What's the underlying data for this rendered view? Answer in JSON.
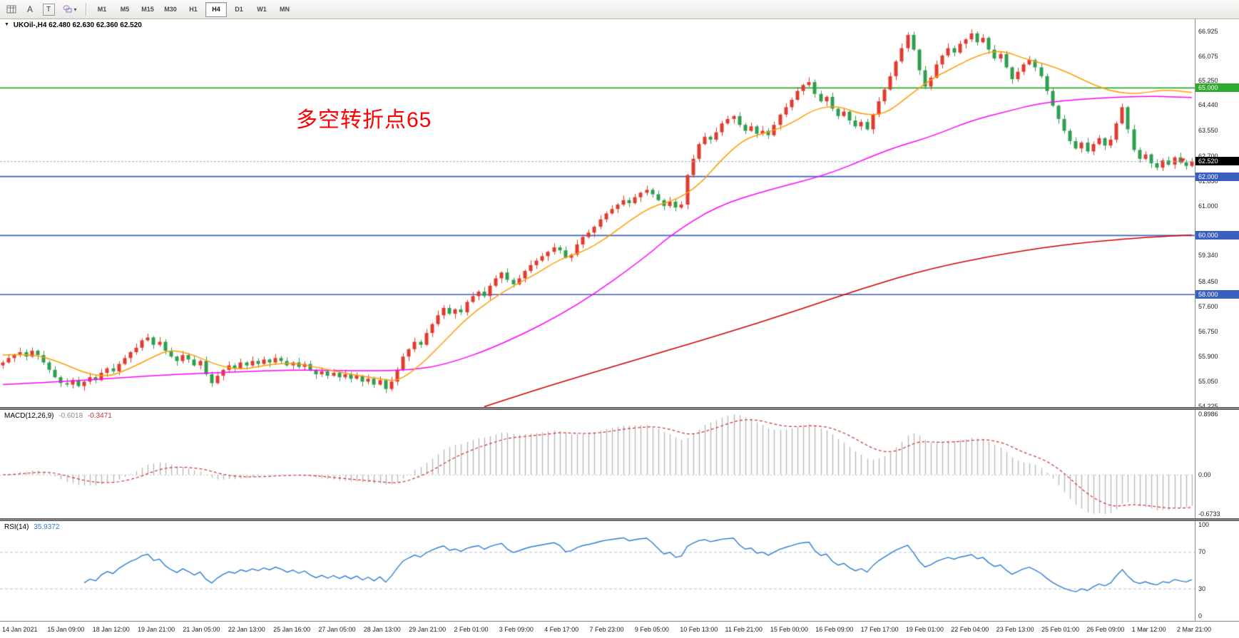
{
  "toolbar": {
    "tools": {
      "a_label": "A",
      "t_label": "T"
    },
    "timeframes": [
      "M1",
      "M5",
      "M15",
      "M30",
      "H1",
      "H4",
      "D1",
      "W1",
      "MN"
    ],
    "active_timeframe": "H4"
  },
  "chart": {
    "symbol": "UKOil-,H4",
    "ohlc": "62.480 62.630 62.360 62.520",
    "annotation": {
      "text": "多空转折点65",
      "color": "#ff0000"
    },
    "price_axis": {
      "labels": [
        "66.925",
        "66.075",
        "65.250",
        "64.440",
        "63.550",
        "62.700",
        "61.850",
        "61.000",
        "59.340",
        "58.450",
        "57.600",
        "56.750",
        "55.900",
        "55.050",
        "54.225"
      ]
    },
    "levels": [
      {
        "value": 65.0,
        "label": "65.000",
        "color": "#2EA82E"
      },
      {
        "value": 62.0,
        "label": "62.000",
        "color": "#3B5FC0"
      },
      {
        "value": 60.0,
        "label": "60.000",
        "color": "#3B5FC0"
      },
      {
        "value": 58.0,
        "label": "58.000",
        "color": "#3B5FC0"
      }
    ],
    "current_price": {
      "value": 62.52,
      "label": "62.520",
      "badge_bg": "#000000"
    },
    "colors": {
      "up": "#e03b2f",
      "down": "#2f9e4f",
      "ma_fast": "#ff9c00",
      "ma_mid": "#ff00ff",
      "ma_slow": "#d10000"
    }
  },
  "chart_data": {
    "type": "candlestick",
    "symbol": "UKOil-",
    "timeframe": "H4",
    "price_range": [
      54.19,
      67.33
    ],
    "first_open": 55.6,
    "closes": [
      55.7,
      55.85,
      55.95,
      56.05,
      55.9,
      56.1,
      55.95,
      55.7,
      55.45,
      55.2,
      55.0,
      54.95,
      55.1,
      54.9,
      55.05,
      55.2,
      55.1,
      55.35,
      55.5,
      55.4,
      55.65,
      55.85,
      56.05,
      56.2,
      56.45,
      56.55,
      56.3,
      56.4,
      56.1,
      55.9,
      55.75,
      55.95,
      55.8,
      55.6,
      55.75,
      55.3,
      55.0,
      55.25,
      55.45,
      55.6,
      55.5,
      55.7,
      55.6,
      55.75,
      55.65,
      55.8,
      55.7,
      55.85,
      55.75,
      55.6,
      55.7,
      55.55,
      55.65,
      55.45,
      55.3,
      55.4,
      55.25,
      55.35,
      55.2,
      55.3,
      55.15,
      55.25,
      55.05,
      55.15,
      54.95,
      55.1,
      54.8,
      55.05,
      55.45,
      55.9,
      56.15,
      56.4,
      56.3,
      56.7,
      57.0,
      57.3,
      57.55,
      57.35,
      57.5,
      57.4,
      57.75,
      57.95,
      58.1,
      57.95,
      58.3,
      58.55,
      58.75,
      58.5,
      58.35,
      58.55,
      58.8,
      59.0,
      59.15,
      59.3,
      59.45,
      59.6,
      59.5,
      59.25,
      59.35,
      59.7,
      59.95,
      60.1,
      60.3,
      60.55,
      60.75,
      60.9,
      61.05,
      61.2,
      61.1,
      61.3,
      61.45,
      61.55,
      61.4,
      61.2,
      61.0,
      61.15,
      60.95,
      61.05,
      62.05,
      62.6,
      63.1,
      63.35,
      63.25,
      63.5,
      63.8,
      63.95,
      64.05,
      63.75,
      63.55,
      63.7,
      63.45,
      63.55,
      63.4,
      63.75,
      64.1,
      64.35,
      64.6,
      64.9,
      65.1,
      65.2,
      64.8,
      64.55,
      64.7,
      64.3,
      64.05,
      64.2,
      63.9,
      63.7,
      63.85,
      63.6,
      64.1,
      64.55,
      64.95,
      65.4,
      65.9,
      66.35,
      66.8,
      66.3,
      65.6,
      65.05,
      65.35,
      65.8,
      66.1,
      66.35,
      66.2,
      66.5,
      66.65,
      66.85,
      66.55,
      66.7,
      66.3,
      66.0,
      66.15,
      65.7,
      65.3,
      65.55,
      65.8,
      65.95,
      65.7,
      65.4,
      64.9,
      64.4,
      63.95,
      63.55,
      63.2,
      62.95,
      63.15,
      62.85,
      63.1,
      63.3,
      63.05,
      63.25,
      63.8,
      64.35,
      63.6,
      62.9,
      62.6,
      62.75,
      62.45,
      62.3,
      62.55,
      62.4,
      62.65,
      62.48,
      62.36,
      62.52
    ],
    "wick_cycle": [
      0.07,
      0.13,
      0.05,
      0.16,
      0.09,
      0.11,
      0.04,
      0.14
    ],
    "ma_fast_waypoints": [
      [
        0,
        55.95
      ],
      [
        5,
        56.0
      ],
      [
        10,
        55.7
      ],
      [
        14,
        55.35
      ],
      [
        18,
        55.2
      ],
      [
        22,
        55.5
      ],
      [
        26,
        55.9
      ],
      [
        29,
        56.15
      ],
      [
        33,
        55.95
      ],
      [
        37,
        55.6
      ],
      [
        41,
        55.45
      ],
      [
        45,
        55.6
      ],
      [
        50,
        55.7
      ],
      [
        55,
        55.5
      ],
      [
        60,
        55.3
      ],
      [
        65,
        55.15
      ],
      [
        68,
        55.05
      ],
      [
        72,
        55.6
      ],
      [
        76,
        56.4
      ],
      [
        80,
        57.2
      ],
      [
        84,
        57.8
      ],
      [
        88,
        58.3
      ],
      [
        92,
        58.7
      ],
      [
        96,
        59.2
      ],
      [
        100,
        59.45
      ],
      [
        104,
        59.9
      ],
      [
        108,
        60.5
      ],
      [
        112,
        61.0
      ],
      [
        116,
        61.2
      ],
      [
        120,
        61.7
      ],
      [
        124,
        62.6
      ],
      [
        128,
        63.3
      ],
      [
        132,
        63.5
      ],
      [
        136,
        63.8
      ],
      [
        140,
        64.3
      ],
      [
        144,
        64.4
      ],
      [
        148,
        64.1
      ],
      [
        152,
        64.1
      ],
      [
        156,
        64.7
      ],
      [
        160,
        65.3
      ],
      [
        164,
        65.7
      ],
      [
        168,
        66.1
      ],
      [
        172,
        66.3
      ],
      [
        176,
        66.0
      ],
      [
        180,
        65.8
      ],
      [
        184,
        65.5
      ],
      [
        188,
        65.1
      ],
      [
        192,
        64.85
      ],
      [
        196,
        64.8
      ],
      [
        200,
        64.95
      ],
      [
        205,
        64.85
      ]
    ],
    "ma_mid_waypoints": [
      [
        0,
        54.95
      ],
      [
        10,
        55.05
      ],
      [
        20,
        55.18
      ],
      [
        30,
        55.3
      ],
      [
        40,
        55.38
      ],
      [
        50,
        55.45
      ],
      [
        60,
        55.42
      ],
      [
        69,
        55.42
      ],
      [
        76,
        55.6
      ],
      [
        86,
        56.3
      ],
      [
        99,
        57.6
      ],
      [
        111,
        59.3
      ],
      [
        115,
        60.0
      ],
      [
        123,
        61.0
      ],
      [
        132,
        61.55
      ],
      [
        142,
        62.05
      ],
      [
        150,
        62.7
      ],
      [
        154,
        63.0
      ],
      [
        160,
        63.35
      ],
      [
        167,
        63.9
      ],
      [
        173,
        64.2
      ],
      [
        179,
        64.5
      ],
      [
        186,
        64.62
      ],
      [
        193,
        64.7
      ],
      [
        199,
        64.72
      ],
      [
        205,
        64.68
      ]
    ],
    "ma_slow_waypoints": [
      [
        83,
        54.2
      ],
      [
        90,
        54.65
      ],
      [
        99,
        55.2
      ],
      [
        111,
        55.9
      ],
      [
        123,
        56.6
      ],
      [
        136,
        57.4
      ],
      [
        148,
        58.2
      ],
      [
        160,
        58.9
      ],
      [
        173,
        59.4
      ],
      [
        185,
        59.75
      ],
      [
        198,
        59.95
      ],
      [
        205,
        60.02
      ]
    ]
  },
  "macd": {
    "label": "MACD(12,26,9)",
    "value_main": "-0.6018",
    "value_signal": "-0.3471",
    "params": {
      "fast": 12,
      "slow": 26,
      "signal": 9
    },
    "axis_labels": [
      {
        "text": "0.8986",
        "pos": "max"
      },
      {
        "text": "0.00",
        "pos": "zero"
      },
      {
        "text": "-0.6733",
        "pos": "min"
      }
    ],
    "colors": {
      "histogram": "#b4b4b4",
      "signal": "#cf3030",
      "zero_line": "#c8c8c8"
    }
  },
  "rsi": {
    "label": "RSI(14)",
    "value": "35.9372",
    "period": 14,
    "levels": [
      70,
      30
    ],
    "axis_labels": [
      {
        "text": "100",
        "value": 100
      },
      {
        "text": "70",
        "value": 70
      },
      {
        "text": "30",
        "value": 30
      },
      {
        "text": "0",
        "value": 0
      }
    ],
    "color": "#2b7cd3",
    "level_line_color": "#b9bdd6"
  },
  "time_axis": {
    "labels": [
      "14 Jan 2021",
      "15 Jan 09:00",
      "18 Jan 12:00",
      "19 Jan 21:00",
      "21 Jan 05:00",
      "22 Jan 13:00",
      "25 Jan 16:00",
      "27 Jan 05:00",
      "28 Jan 13:00",
      "29 Jan 21:00",
      "2 Feb 01:00",
      "3 Feb 09:00",
      "4 Feb 17:00",
      "7 Feb 23:00",
      "9 Feb 05:00",
      "10 Feb 13:00",
      "11 Feb 21:00",
      "15 Feb 00:00",
      "16 Feb 09:00",
      "17 Feb 17:00",
      "19 Feb 01:00",
      "22 Feb 04:00",
      "23 Feb 13:00",
      "25 Feb 01:00",
      "26 Feb 09:00",
      "1 Mar 12:00",
      "2 Mar 21:00"
    ]
  }
}
